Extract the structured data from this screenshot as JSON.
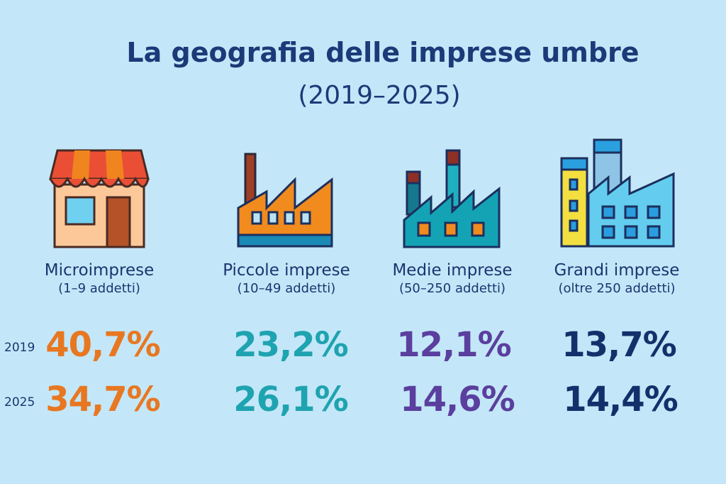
{
  "title": "La geografia delle imprese umbre",
  "subtitle": "(2019–2025)",
  "colors": {
    "background": "#c3e7f8",
    "micro": "#e87722",
    "piccole": "#1fa3b0",
    "medie": "#5b3f9e",
    "grandi": "#14306b"
  },
  "chart_data": {
    "type": "table",
    "title": "La geografia delle imprese umbre (2019–2025)",
    "years": [
      "2019",
      "2025"
    ],
    "categories": [
      {
        "name": "Microimprese",
        "detail": "(1–9 addetti)",
        "icon": "shop-icon",
        "values": {
          "2019": "40,7%",
          "2025": "34,7%"
        }
      },
      {
        "name": "Piccole imprese",
        "detail": "(10–49 addetti)",
        "icon": "small-factory-icon",
        "values": {
          "2019": "23,2%",
          "2025": "26,1%"
        }
      },
      {
        "name": "Medie imprese",
        "detail": "(50–250 addetti)",
        "icon": "medium-factory-icon",
        "values": {
          "2019": "12,1%",
          "2025": "14,6%"
        }
      },
      {
        "name": "Grandi imprese",
        "detail": "(oltre 250 addetti)",
        "icon": "large-factory-icon",
        "values": {
          "2019": "13,7%",
          "2025": "14,4%"
        }
      }
    ]
  }
}
